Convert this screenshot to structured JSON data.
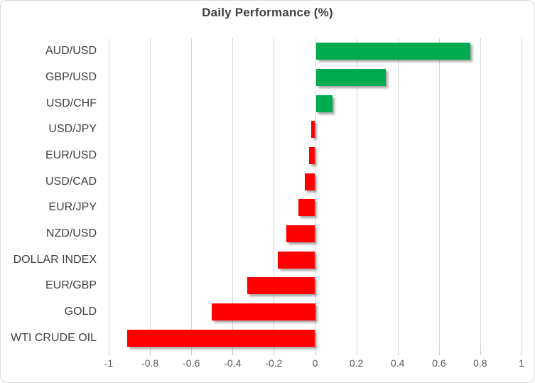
{
  "chart_data": {
    "type": "bar",
    "orientation": "horizontal",
    "title": "Daily Performance (%)",
    "categories": [
      "AUD/USD",
      "GBP/USD",
      "USD/CHF",
      "USD/JPY",
      "EUR/USD",
      "USD/CAD",
      "EUR/JPY",
      "NZD/USD",
      "DOLLAR INDEX",
      "EUR/GBP",
      "GOLD",
      "WTI CRUDE OIL"
    ],
    "values": [
      0.75,
      0.34,
      0.08,
      -0.02,
      -0.03,
      -0.05,
      -0.08,
      -0.14,
      -0.18,
      -0.33,
      -0.5,
      -0.91
    ],
    "xlim": [
      -1,
      1
    ],
    "x_tick_labels": [
      "-1",
      "-0.8",
      "-0.6",
      "-0.4",
      "-0.2",
      "0",
      "0.2",
      "0.4",
      "0.6",
      "0.8",
      "1"
    ],
    "grid": true,
    "legend": false,
    "colors": {
      "positive_bar": "#00AB50",
      "negative_bar": "#FF0000",
      "gridline": "#D6D6D6",
      "title_text": "#404040",
      "category_text": "#404040",
      "axis_text": "#595959",
      "frame_border": "#D9D9D9"
    }
  }
}
